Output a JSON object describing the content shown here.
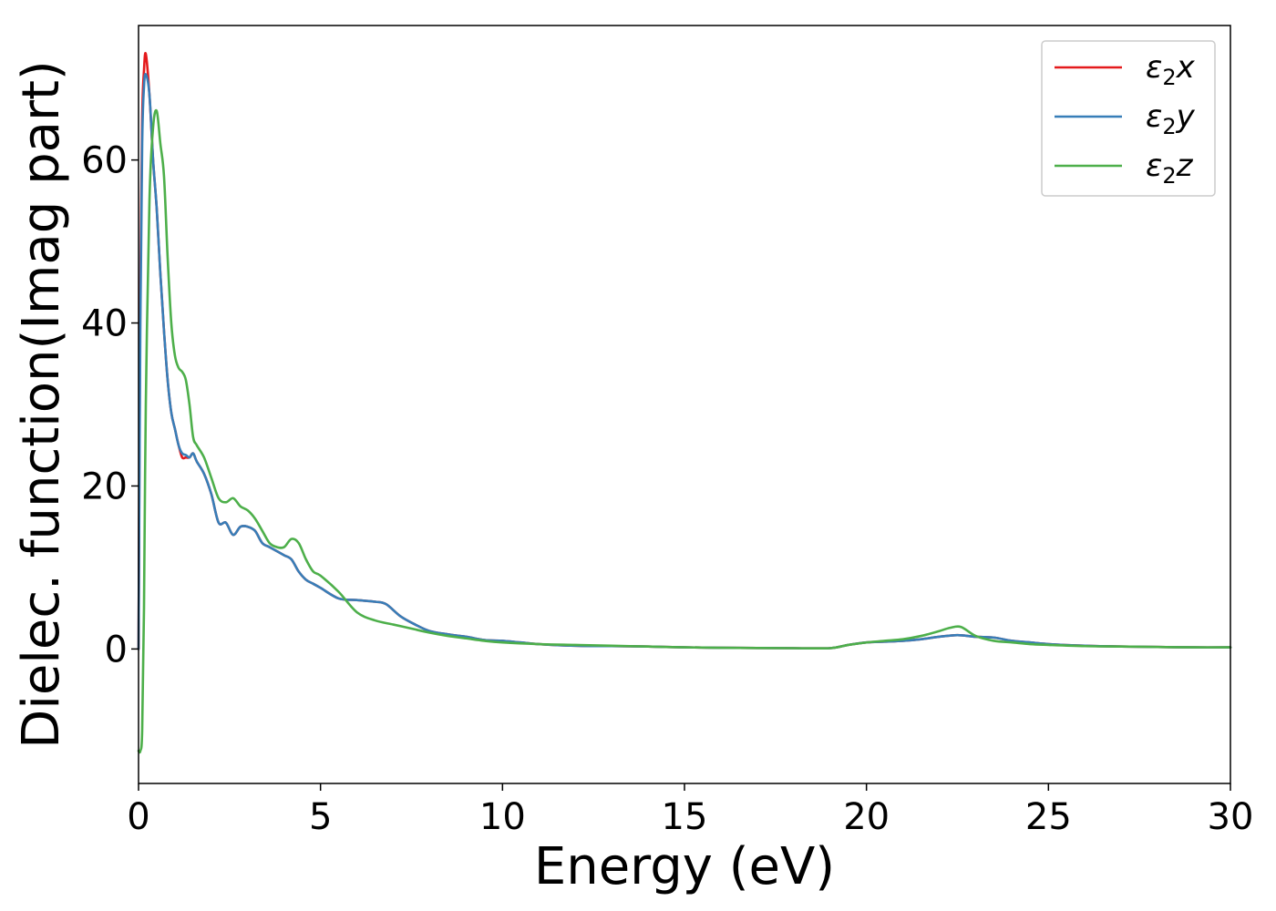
{
  "chart_data": {
    "type": "line",
    "title": "",
    "xlabel": "Energy (eV)",
    "ylabel": "Dielec. function(Imag part)",
    "xlim": [
      0,
      30
    ],
    "ylim": [
      -16.5,
      76.5
    ],
    "xticks": [
      0,
      5,
      10,
      15,
      20,
      25,
      30
    ],
    "yticks": [
      0,
      20,
      40,
      60
    ],
    "grid": false,
    "legend_position": "top-right",
    "series": [
      {
        "name": "ε2x",
        "legend": {
          "base": "ε",
          "sub": "2",
          "suffix": "x"
        },
        "color": "#e41a1c",
        "x": [
          0,
          0.05,
          0.1,
          0.15,
          0.2,
          0.3,
          0.4,
          0.5,
          0.6,
          0.7,
          0.8,
          0.9,
          1.0,
          1.1,
          1.2,
          1.3,
          1.4,
          1.5,
          1.6,
          1.8,
          2.0,
          2.2,
          2.4,
          2.6,
          2.8,
          3.0,
          3.2,
          3.4,
          3.6,
          3.8,
          4.0,
          4.2,
          4.4,
          4.6,
          4.8,
          5.0,
          5.5,
          6.0,
          6.5,
          6.8,
          7.2,
          7.6,
          8.0,
          8.5,
          9.0,
          9.5,
          10.0,
          10.5,
          11.0,
          12.0,
          13.0,
          14.0,
          15.0,
          16.0,
          17.0,
          18.0,
          19.0,
          19.5,
          20.0,
          20.5,
          21.0,
          21.5,
          22.0,
          22.5,
          23.0,
          23.5,
          24.0,
          24.5,
          25.0,
          26.0,
          27.0,
          28.0,
          29.0,
          30.0
        ],
        "y": [
          0,
          45,
          65,
          71,
          73,
          68,
          60,
          54,
          46,
          39,
          33,
          29,
          27,
          25,
          23.5,
          23.5,
          23.5,
          24,
          23,
          21.5,
          19,
          15.5,
          15.5,
          14,
          15,
          15,
          14.5,
          13,
          12.5,
          12,
          11.5,
          11,
          9.5,
          8.5,
          8,
          7.5,
          6.2,
          6,
          5.8,
          5.5,
          4,
          3,
          2.2,
          1.8,
          1.5,
          1.1,
          1.0,
          0.8,
          0.6,
          0.4,
          0.35,
          0.3,
          0.2,
          0.15,
          0.12,
          0.1,
          0.1,
          0.5,
          0.8,
          0.9,
          1.0,
          1.2,
          1.5,
          1.7,
          1.5,
          1.4,
          1.0,
          0.8,
          0.6,
          0.4,
          0.3,
          0.25,
          0.2,
          0.2
        ]
      },
      {
        "name": "ε2y",
        "legend": {
          "base": "ε",
          "sub": "2",
          "suffix": "y"
        },
        "color": "#377eb8",
        "x": [
          0,
          0.05,
          0.1,
          0.15,
          0.2,
          0.3,
          0.4,
          0.5,
          0.6,
          0.7,
          0.8,
          0.9,
          1.0,
          1.1,
          1.2,
          1.3,
          1.4,
          1.5,
          1.6,
          1.8,
          2.0,
          2.2,
          2.4,
          2.6,
          2.8,
          3.0,
          3.2,
          3.4,
          3.6,
          3.8,
          4.0,
          4.2,
          4.4,
          4.6,
          4.8,
          5.0,
          5.5,
          6.0,
          6.5,
          6.8,
          7.2,
          7.6,
          8.0,
          8.5,
          9.0,
          9.5,
          10.0,
          10.5,
          11.0,
          12.0,
          13.0,
          14.0,
          15.0,
          16.0,
          17.0,
          18.0,
          19.0,
          19.5,
          20.0,
          20.5,
          21.0,
          21.5,
          22.0,
          22.5,
          23.0,
          23.5,
          24.0,
          24.5,
          25.0,
          26.0,
          27.0,
          28.0,
          29.0,
          30.0
        ],
        "y": [
          0,
          40,
          62,
          69,
          70.5,
          68,
          60,
          54,
          46,
          39,
          33,
          29,
          27,
          25,
          24,
          23.8,
          23.5,
          24,
          23,
          21.5,
          19,
          15.5,
          15.5,
          14,
          15,
          15,
          14.5,
          13,
          12.5,
          12,
          11.5,
          11,
          9.5,
          8.5,
          8,
          7.5,
          6.2,
          6,
          5.8,
          5.5,
          4,
          3,
          2.2,
          1.8,
          1.5,
          1.1,
          1.0,
          0.8,
          0.6,
          0.4,
          0.35,
          0.3,
          0.2,
          0.15,
          0.12,
          0.1,
          0.1,
          0.5,
          0.8,
          0.9,
          1.0,
          1.2,
          1.5,
          1.7,
          1.5,
          1.4,
          1.0,
          0.8,
          0.6,
          0.4,
          0.3,
          0.25,
          0.2,
          0.2
        ]
      },
      {
        "name": "ε2z",
        "legend": {
          "base": "ε",
          "sub": "2",
          "suffix": "z"
        },
        "color": "#4daf4a",
        "x": [
          0,
          0.05,
          0.1,
          0.15,
          0.2,
          0.3,
          0.4,
          0.5,
          0.6,
          0.7,
          0.8,
          0.9,
          1.0,
          1.1,
          1.2,
          1.3,
          1.4,
          1.5,
          1.6,
          1.8,
          2.0,
          2.2,
          2.4,
          2.6,
          2.8,
          3.0,
          3.2,
          3.4,
          3.6,
          3.8,
          4.0,
          4.2,
          4.4,
          4.6,
          4.8,
          5.0,
          5.5,
          6.0,
          6.5,
          7.0,
          7.5,
          8.0,
          8.5,
          9.0,
          9.5,
          10.0,
          11.0,
          12.0,
          13.0,
          14.0,
          15.0,
          16.0,
          17.0,
          18.0,
          19.0,
          19.5,
          20.0,
          20.5,
          21.0,
          21.5,
          22.0,
          22.3,
          22.6,
          23.0,
          23.5,
          24.0,
          24.5,
          25.0,
          26.0,
          27.0,
          28.0,
          29.0,
          30.0
        ],
        "y": [
          -12.5,
          -12.5,
          -10,
          5,
          30,
          55,
          64,
          66,
          62,
          58,
          48,
          40,
          36,
          34.5,
          34,
          33,
          30,
          26,
          25,
          23.5,
          21,
          18.5,
          18,
          18.5,
          17.5,
          17,
          16,
          14.5,
          13,
          12.5,
          12.5,
          13.5,
          13,
          11,
          9.5,
          9,
          7,
          4.5,
          3.5,
          3,
          2.5,
          2,
          1.6,
          1.3,
          1.0,
          0.8,
          0.6,
          0.5,
          0.4,
          0.3,
          0.2,
          0.15,
          0.12,
          0.1,
          0.1,
          0.5,
          0.8,
          1.0,
          1.2,
          1.6,
          2.2,
          2.6,
          2.7,
          1.6,
          1.0,
          0.8,
          0.6,
          0.5,
          0.35,
          0.3,
          0.25,
          0.2,
          0.2
        ]
      }
    ]
  }
}
